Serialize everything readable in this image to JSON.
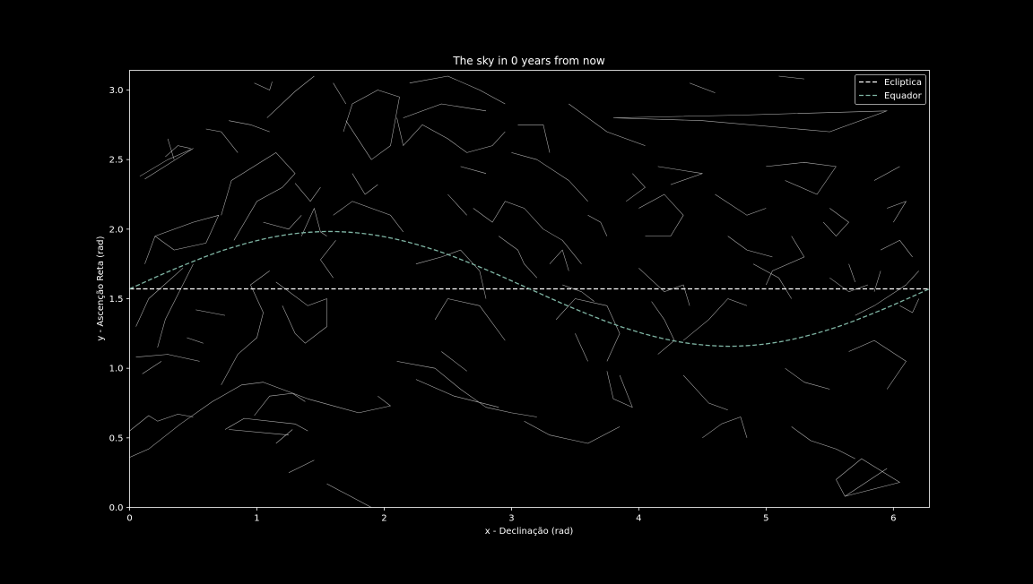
{
  "chart_data": {
    "type": "line",
    "title": "The sky in 0 years from now",
    "xlabel": "x - Declinação (rad)",
    "ylabel": "y - Ascenção Reta (rad)",
    "xlim": [
      0,
      6.2832
    ],
    "ylim": [
      0,
      3.1416
    ],
    "xticks": [
      0,
      1,
      2,
      3,
      4,
      5,
      6
    ],
    "xtick_labels": [
      "0",
      "1",
      "2",
      "3",
      "4",
      "5",
      "6"
    ],
    "yticks": [
      0.0,
      0.5,
      1.0,
      1.5,
      2.0,
      2.5,
      3.0
    ],
    "ytick_labels": [
      "0.0",
      "0.5",
      "1.0",
      "1.5",
      "2.0",
      "2.5",
      "3.0"
    ],
    "grid": false,
    "legend_position": "top-right",
    "colors": {
      "background": "#000000",
      "axes": "#ffffff",
      "ecliptica": "#ffffff",
      "equador": "#7fb5a4",
      "constellations": "#b4b4b4"
    },
    "series": [
      {
        "name": "Ecliptica",
        "style": "dashed",
        "x": [
          0,
          6.2832
        ],
        "y": [
          1.5708,
          1.5708
        ]
      },
      {
        "name": "Equador",
        "style": "dashed",
        "x": [
          0.0,
          0.3927,
          0.7854,
          1.1781,
          1.5708,
          1.9635,
          2.3562,
          2.7489,
          3.1416,
          3.5343,
          3.927,
          4.3197,
          4.7124,
          5.1051,
          5.4978,
          5.8905,
          6.2832
        ],
        "y": [
          1.5708,
          1.7286,
          1.8624,
          1.9518,
          1.9832,
          1.9518,
          1.8624,
          1.7286,
          1.5708,
          1.413,
          1.2792,
          1.1898,
          1.1584,
          1.1898,
          1.2792,
          1.413,
          1.5708
        ]
      }
    ],
    "constellation_lines": [
      [
        [
          0.08,
          2.38
        ],
        [
          0.3,
          2.5
        ],
        [
          0.5,
          2.58
        ],
        [
          0.12,
          2.36
        ]
      ],
      [
        [
          0.28,
          2.52
        ],
        [
          0.38,
          2.6
        ],
        [
          0.48,
          2.58
        ]
      ],
      [
        [
          0.3,
          2.65
        ],
        [
          0.35,
          2.5
        ]
      ],
      [
        [
          0.12,
          1.75
        ],
        [
          0.2,
          1.95
        ],
        [
          0.5,
          2.05
        ],
        [
          0.7,
          2.1
        ],
        [
          0.6,
          1.9
        ],
        [
          0.35,
          1.85
        ],
        [
          0.2,
          1.95
        ]
      ],
      [
        [
          0.5,
          1.75
        ],
        [
          0.28,
          1.35
        ],
        [
          0.22,
          1.15
        ]
      ],
      [
        [
          0.05,
          1.08
        ],
        [
          0.3,
          1.1
        ],
        [
          0.55,
          1.05
        ]
      ],
      [
        [
          0.05,
          1.3
        ],
        [
          0.15,
          1.5
        ],
        [
          0.42,
          1.72
        ]
      ],
      [
        [
          0.52,
          1.42
        ],
        [
          0.75,
          1.38
        ]
      ],
      [
        [
          0.45,
          1.22
        ],
        [
          0.58,
          1.18
        ]
      ],
      [
        [
          0.1,
          0.96
        ],
        [
          0.25,
          1.05
        ]
      ],
      [
        [
          0.0,
          0.36
        ],
        [
          0.15,
          0.42
        ],
        [
          0.4,
          0.6
        ],
        [
          0.65,
          0.76
        ],
        [
          0.88,
          0.88
        ],
        [
          1.05,
          0.9
        ],
        [
          1.4,
          0.78
        ],
        [
          1.8,
          0.68
        ],
        [
          2.05,
          0.73
        ],
        [
          1.95,
          0.8
        ]
      ],
      [
        [
          0.0,
          0.55
        ],
        [
          0.15,
          0.66
        ],
        [
          0.22,
          0.62
        ],
        [
          0.38,
          0.67
        ],
        [
          0.5,
          0.65
        ]
      ],
      [
        [
          0.75,
          0.56
        ],
        [
          0.9,
          0.64
        ],
        [
          1.3,
          0.6
        ],
        [
          1.4,
          0.55
        ]
      ],
      [
        [
          0.78,
          0.56
        ],
        [
          1.25,
          0.52
        ]
      ],
      [
        [
          0.98,
          0.66
        ],
        [
          1.1,
          0.8
        ],
        [
          1.28,
          0.82
        ],
        [
          1.38,
          0.76
        ]
      ],
      [
        [
          1.15,
          0.46
        ],
        [
          1.28,
          0.56
        ]
      ],
      [
        [
          1.25,
          0.25
        ],
        [
          1.45,
          0.34
        ]
      ],
      [
        [
          1.55,
          0.17
        ],
        [
          1.9,
          0.0
        ]
      ],
      [
        [
          0.72,
          0.88
        ],
        [
          0.85,
          1.1
        ],
        [
          1.0,
          1.22
        ],
        [
          1.05,
          1.4
        ],
        [
          0.95,
          1.6
        ],
        [
          1.1,
          1.7
        ]
      ],
      [
        [
          1.15,
          1.62
        ],
        [
          1.4,
          1.45
        ],
        [
          1.55,
          1.5
        ],
        [
          1.55,
          1.3
        ],
        [
          1.38,
          1.18
        ],
        [
          1.3,
          1.25
        ],
        [
          1.2,
          1.45
        ]
      ],
      [
        [
          0.82,
          1.92
        ],
        [
          1.0,
          2.2
        ],
        [
          1.2,
          2.3
        ],
        [
          1.3,
          2.4
        ],
        [
          1.15,
          2.55
        ],
        [
          0.8,
          2.35
        ],
        [
          0.72,
          2.1
        ]
      ],
      [
        [
          1.05,
          2.05
        ],
        [
          1.25,
          2.0
        ],
        [
          1.35,
          2.1
        ]
      ],
      [
        [
          1.35,
          1.95
        ],
        [
          1.45,
          2.15
        ],
        [
          1.5,
          1.98
        ],
        [
          1.55,
          1.95
        ]
      ],
      [
        [
          1.3,
          2.33
        ],
        [
          1.42,
          2.2
        ],
        [
          1.5,
          2.3
        ]
      ],
      [
        [
          1.08,
          2.8
        ],
        [
          1.3,
          2.99
        ],
        [
          1.45,
          3.1
        ]
      ],
      [
        [
          0.78,
          2.78
        ],
        [
          0.95,
          2.75
        ],
        [
          1.1,
          2.7
        ]
      ],
      [
        [
          0.6,
          2.72
        ],
        [
          0.72,
          2.7
        ],
        [
          0.85,
          2.55
        ]
      ],
      [
        [
          0.98,
          3.05
        ],
        [
          1.1,
          3.0
        ],
        [
          1.12,
          3.06
        ]
      ],
      [
        [
          1.7,
          2.78
        ],
        [
          1.9,
          2.5
        ],
        [
          2.05,
          2.6
        ],
        [
          2.12,
          2.95
        ],
        [
          1.95,
          3.0
        ],
        [
          1.75,
          2.9
        ],
        [
          1.68,
          2.7
        ]
      ],
      [
        [
          1.6,
          3.05
        ],
        [
          1.7,
          2.9
        ]
      ],
      [
        [
          1.75,
          2.4
        ],
        [
          1.85,
          2.25
        ],
        [
          1.95,
          2.32
        ]
      ],
      [
        [
          1.6,
          2.1
        ],
        [
          1.75,
          2.2
        ],
        [
          2.05,
          2.1
        ],
        [
          2.15,
          1.98
        ]
      ],
      [
        [
          1.62,
          1.92
        ],
        [
          1.5,
          1.78
        ],
        [
          1.6,
          1.65
        ]
      ],
      [
        [
          2.1,
          2.8
        ],
        [
          2.15,
          2.6
        ],
        [
          2.3,
          2.75
        ],
        [
          2.5,
          2.65
        ],
        [
          2.65,
          2.55
        ],
        [
          2.85,
          2.6
        ],
        [
          2.95,
          2.7
        ]
      ],
      [
        [
          2.2,
          3.05
        ],
        [
          2.5,
          3.1
        ],
        [
          2.75,
          3.0
        ],
        [
          2.95,
          2.9
        ]
      ],
      [
        [
          2.15,
          2.8
        ],
        [
          2.45,
          2.9
        ],
        [
          2.8,
          2.85
        ]
      ],
      [
        [
          2.6,
          2.45
        ],
        [
          2.8,
          2.4
        ]
      ],
      [
        [
          2.5,
          2.25
        ],
        [
          2.65,
          2.1
        ]
      ],
      [
        [
          2.25,
          1.75
        ],
        [
          2.45,
          1.8
        ],
        [
          2.6,
          1.85
        ],
        [
          2.75,
          1.7
        ],
        [
          2.8,
          1.5
        ]
      ],
      [
        [
          2.7,
          2.15
        ],
        [
          2.85,
          2.05
        ],
        [
          2.95,
          2.2
        ],
        [
          3.1,
          2.15
        ],
        [
          3.25,
          2.0
        ],
        [
          3.4,
          1.92
        ],
        [
          3.55,
          1.75
        ]
      ],
      [
        [
          2.9,
          1.95
        ],
        [
          3.05,
          1.85
        ],
        [
          3.1,
          1.75
        ],
        [
          3.2,
          1.65
        ]
      ],
      [
        [
          3.0,
          2.55
        ],
        [
          3.2,
          2.5
        ],
        [
          3.45,
          2.35
        ],
        [
          3.6,
          2.2
        ]
      ],
      [
        [
          3.05,
          2.75
        ],
        [
          3.25,
          2.75
        ],
        [
          3.3,
          2.55
        ]
      ],
      [
        [
          3.45,
          2.9
        ],
        [
          3.75,
          2.7
        ],
        [
          4.05,
          2.6
        ]
      ],
      [
        [
          2.4,
          1.35
        ],
        [
          2.5,
          1.5
        ],
        [
          2.75,
          1.45
        ],
        [
          2.95,
          1.2
        ]
      ],
      [
        [
          2.1,
          1.05
        ],
        [
          2.4,
          1.0
        ],
        [
          2.6,
          0.85
        ],
        [
          2.8,
          0.72
        ],
        [
          3.0,
          0.68
        ],
        [
          3.2,
          0.65
        ]
      ],
      [
        [
          2.45,
          1.12
        ],
        [
          2.65,
          0.98
        ]
      ],
      [
        [
          2.25,
          0.92
        ],
        [
          2.55,
          0.8
        ],
        [
          2.9,
          0.72
        ]
      ],
      [
        [
          3.1,
          0.62
        ],
        [
          3.3,
          0.52
        ],
        [
          3.6,
          0.46
        ],
        [
          3.85,
          0.58
        ]
      ],
      [
        [
          3.35,
          1.35
        ],
        [
          3.5,
          1.5
        ],
        [
          3.75,
          1.45
        ],
        [
          3.85,
          1.25
        ],
        [
          3.75,
          1.05
        ]
      ],
      [
        [
          3.5,
          1.25
        ],
        [
          3.6,
          1.05
        ]
      ],
      [
        [
          3.75,
          0.98
        ],
        [
          3.8,
          0.78
        ],
        [
          3.95,
          0.72
        ],
        [
          3.85,
          0.95
        ]
      ],
      [
        [
          4.0,
          2.15
        ],
        [
          4.2,
          2.25
        ],
        [
          4.35,
          2.1
        ],
        [
          4.25,
          1.95
        ],
        [
          4.05,
          1.95
        ]
      ],
      [
        [
          4.0,
          1.72
        ],
        [
          4.2,
          1.55
        ],
        [
          4.35,
          1.6
        ],
        [
          4.4,
          1.45
        ]
      ],
      [
        [
          4.15,
          2.45
        ],
        [
          4.5,
          2.4
        ],
        [
          4.25,
          2.32
        ]
      ],
      [
        [
          4.35,
          1.2
        ],
        [
          4.55,
          1.35
        ],
        [
          4.7,
          1.5
        ],
        [
          4.85,
          1.45
        ]
      ],
      [
        [
          4.35,
          0.95
        ],
        [
          4.55,
          0.75
        ],
        [
          4.7,
          0.7
        ]
      ],
      [
        [
          4.5,
          0.5
        ],
        [
          4.65,
          0.6
        ],
        [
          4.8,
          0.65
        ],
        [
          4.85,
          0.5
        ]
      ],
      [
        [
          4.6,
          2.25
        ],
        [
          4.85,
          2.1
        ],
        [
          5.0,
          2.15
        ]
      ],
      [
        [
          4.7,
          1.95
        ],
        [
          4.85,
          1.85
        ],
        [
          5.05,
          1.8
        ]
      ],
      [
        [
          4.9,
          1.75
        ],
        [
          5.1,
          1.65
        ],
        [
          5.2,
          1.5
        ]
      ],
      [
        [
          5.0,
          2.45
        ],
        [
          5.3,
          2.48
        ],
        [
          5.55,
          2.45
        ],
        [
          5.4,
          2.25
        ],
        [
          5.15,
          2.35
        ]
      ],
      [
        [
          5.2,
          1.95
        ],
        [
          5.3,
          1.8
        ],
        [
          5.05,
          1.7
        ],
        [
          5.0,
          1.6
        ]
      ],
      [
        [
          5.15,
          1.0
        ],
        [
          5.3,
          0.9
        ],
        [
          5.5,
          0.85
        ]
      ],
      [
        [
          5.2,
          0.58
        ],
        [
          5.35,
          0.48
        ],
        [
          5.55,
          0.42
        ],
        [
          5.7,
          0.35
        ]
      ],
      [
        [
          5.5,
          2.15
        ],
        [
          5.65,
          2.05
        ],
        [
          5.55,
          1.95
        ],
        [
          5.45,
          2.05
        ]
      ],
      [
        [
          5.5,
          1.65
        ],
        [
          5.65,
          1.55
        ],
        [
          5.8,
          1.6
        ]
      ],
      [
        [
          5.65,
          1.12
        ],
        [
          5.85,
          1.2
        ],
        [
          6.1,
          1.05
        ],
        [
          5.95,
          0.85
        ]
      ],
      [
        [
          5.85,
          2.35
        ],
        [
          6.05,
          2.45
        ]
      ],
      [
        [
          5.95,
          2.15
        ],
        [
          6.1,
          2.2
        ],
        [
          6.0,
          2.05
        ]
      ],
      [
        [
          5.9,
          1.85
        ],
        [
          6.05,
          1.92
        ],
        [
          6.15,
          1.8
        ]
      ],
      [
        [
          5.7,
          1.38
        ],
        [
          5.85,
          1.45
        ],
        [
          6.1,
          1.6
        ],
        [
          6.2,
          1.7
        ]
      ],
      [
        [
          6.05,
          1.45
        ],
        [
          6.15,
          1.4
        ],
        [
          6.2,
          1.5
        ]
      ],
      [
        [
          5.55,
          0.2
        ],
        [
          5.75,
          0.35
        ],
        [
          6.05,
          0.18
        ],
        [
          5.62,
          0.08
        ],
        [
          5.55,
          0.2
        ]
      ],
      [
        [
          5.62,
          0.08
        ],
        [
          5.95,
          0.28
        ]
      ],
      [
        [
          3.8,
          2.8
        ],
        [
          4.5,
          2.78
        ],
        [
          5.5,
          2.7
        ],
        [
          5.95,
          2.85
        ],
        [
          4.8,
          2.82
        ],
        [
          3.8,
          2.8
        ]
      ],
      [
        [
          4.4,
          3.05
        ],
        [
          4.6,
          2.98
        ]
      ],
      [
        [
          5.1,
          3.1
        ],
        [
          5.3,
          3.08
        ]
      ],
      [
        [
          3.9,
          2.2
        ],
        [
          4.05,
          2.3
        ],
        [
          3.95,
          2.4
        ]
      ],
      [
        [
          4.1,
          1.48
        ],
        [
          4.2,
          1.35
        ],
        [
          4.28,
          1.2
        ],
        [
          4.15,
          1.1
        ]
      ],
      [
        [
          3.3,
          1.75
        ],
        [
          3.4,
          1.85
        ],
        [
          3.45,
          1.7
        ]
      ],
      [
        [
          3.6,
          2.1
        ],
        [
          3.7,
          2.05
        ],
        [
          3.75,
          1.95
        ]
      ],
      [
        [
          3.4,
          1.6
        ],
        [
          3.55,
          1.55
        ],
        [
          3.65,
          1.48
        ]
      ],
      [
        [
          5.65,
          1.75
        ],
        [
          5.7,
          1.62
        ]
      ],
      [
        [
          5.85,
          1.55
        ],
        [
          5.9,
          1.7
        ]
      ]
    ]
  }
}
